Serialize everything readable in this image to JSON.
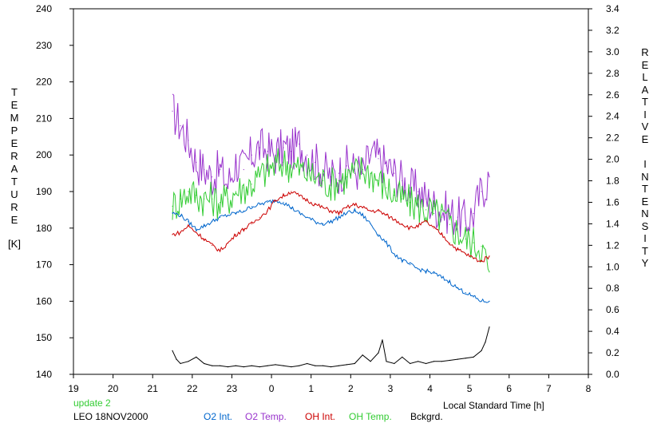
{
  "chart_data": {
    "type": "line",
    "title": "",
    "xlabel": "Local Standard Time [h]",
    "ylabel_left_letters": [
      "T",
      "E",
      "M",
      "P",
      "E",
      "R",
      "A",
      "T",
      "U",
      "R",
      "E"
    ],
    "ylabel_left_unit": "[K]",
    "ylabel_right_words": [
      [
        "R",
        "E",
        "L",
        "A",
        "T",
        "I",
        "V",
        "E"
      ],
      [
        "I",
        "N",
        "T",
        "E",
        "N",
        "S",
        "I",
        "T",
        "Y"
      ]
    ],
    "x_ticks": [
      "19",
      "20",
      "21",
      "22",
      "23",
      "0",
      "1",
      "2",
      "3",
      "4",
      "5",
      "6",
      "7",
      "8"
    ],
    "x_range_hours": [
      19,
      32
    ],
    "y_left_ticks": [
      "240",
      "230",
      "220",
      "210",
      "200",
      "190",
      "180",
      "170",
      "160",
      "150",
      "140"
    ],
    "y_left_range": [
      140,
      240
    ],
    "y_right_ticks": [
      "3.4",
      "3.2",
      "3.0",
      "2.8",
      "2.6",
      "2.4",
      "2.2",
      "2.0",
      "1.8",
      "1.6",
      "1.4",
      "1.2",
      "1.0",
      "0.8",
      "0.6",
      "0.4",
      "0.2",
      "0.0"
    ],
    "y_right_range": [
      0.0,
      3.4
    ],
    "grid": false,
    "series": [
      {
        "name": "O2 Temp.",
        "color": "#9933cc",
        "axis": "left",
        "x": [
          21.5,
          21.7,
          21.9,
          22.1,
          22.3,
          22.5,
          22.7,
          22.9,
          23.1,
          23.3,
          23.5,
          23.7,
          23.9,
          24.1,
          24.3,
          24.5,
          24.7,
          24.9,
          25.1,
          25.3,
          25.5,
          25.7,
          25.9,
          26.1,
          26.3,
          26.5,
          26.7,
          26.9,
          27.1,
          27.3,
          27.5,
          27.7,
          27.9,
          28.1,
          28.3,
          28.5,
          28.7,
          28.9,
          29.1,
          29.3,
          29.5
        ],
        "y": [
          212,
          208,
          204,
          198,
          196,
          194,
          196,
          192,
          198,
          196,
          200,
          202,
          201,
          200,
          202,
          201,
          203,
          200,
          198,
          196,
          194,
          195,
          197,
          196,
          195,
          200,
          199,
          197,
          195,
          193,
          191,
          190,
          188,
          186,
          185,
          184,
          183,
          182,
          184,
          190,
          194
        ]
      },
      {
        "name": "OH Temp.",
        "color": "#33cc33",
        "axis": "left",
        "x": [
          21.5,
          21.7,
          21.9,
          22.1,
          22.3,
          22.5,
          22.7,
          22.9,
          23.1,
          23.3,
          23.5,
          23.7,
          23.9,
          24.1,
          24.3,
          24.5,
          24.7,
          24.9,
          25.1,
          25.3,
          25.5,
          25.7,
          25.9,
          26.1,
          26.3,
          26.5,
          26.7,
          26.9,
          27.1,
          27.3,
          27.5,
          27.7,
          27.9,
          28.1,
          28.3,
          28.5,
          28.7,
          28.9,
          29.1,
          29.3,
          29.5
        ],
        "y": [
          186,
          188,
          190,
          189,
          188,
          188,
          187,
          188,
          190,
          191,
          192,
          194,
          196,
          197,
          198,
          197,
          196,
          195,
          194,
          193,
          192,
          193,
          194,
          195,
          196,
          195,
          193,
          191,
          189,
          188,
          187,
          186,
          185,
          184,
          183,
          181,
          179,
          177,
          176,
          175,
          168
        ]
      },
      {
        "name": "O2 Int.",
        "color": "#0066cc",
        "axis": "right",
        "x": [
          21.5,
          21.7,
          21.9,
          22.1,
          22.3,
          22.5,
          22.7,
          22.9,
          23.1,
          23.3,
          23.5,
          23.7,
          23.9,
          24.1,
          24.3,
          24.5,
          24.7,
          24.9,
          25.1,
          25.3,
          25.5,
          25.7,
          25.9,
          26.1,
          26.3,
          26.5,
          26.7,
          26.9,
          27.1,
          27.3,
          27.5,
          27.7,
          27.9,
          28.1,
          28.3,
          28.5,
          28.7,
          28.9,
          29.1,
          29.3,
          29.5
        ],
        "y": [
          1.5,
          1.48,
          1.42,
          1.35,
          1.38,
          1.42,
          1.46,
          1.48,
          1.5,
          1.52,
          1.56,
          1.58,
          1.6,
          1.62,
          1.6,
          1.55,
          1.5,
          1.46,
          1.42,
          1.4,
          1.42,
          1.46,
          1.5,
          1.52,
          1.48,
          1.4,
          1.3,
          1.22,
          1.12,
          1.06,
          1.02,
          0.98,
          0.96,
          0.94,
          0.9,
          0.86,
          0.8,
          0.76,
          0.72,
          0.68,
          0.68
        ]
      },
      {
        "name": "OH Int.",
        "color": "#cc0000",
        "axis": "right",
        "x": [
          21.5,
          21.7,
          21.9,
          22.1,
          22.3,
          22.5,
          22.7,
          22.9,
          23.1,
          23.3,
          23.5,
          23.7,
          23.9,
          24.1,
          24.3,
          24.5,
          24.7,
          24.9,
          25.1,
          25.3,
          25.5,
          25.7,
          25.9,
          26.1,
          26.3,
          26.5,
          26.7,
          26.9,
          27.1,
          27.3,
          27.5,
          27.7,
          27.9,
          28.1,
          28.3,
          28.5,
          28.7,
          28.9,
          29.1,
          29.3,
          29.5
        ],
        "y": [
          1.3,
          1.32,
          1.38,
          1.32,
          1.26,
          1.2,
          1.15,
          1.22,
          1.3,
          1.35,
          1.4,
          1.46,
          1.52,
          1.62,
          1.66,
          1.7,
          1.66,
          1.62,
          1.58,
          1.55,
          1.52,
          1.5,
          1.55,
          1.58,
          1.55,
          1.52,
          1.52,
          1.48,
          1.44,
          1.4,
          1.36,
          1.38,
          1.42,
          1.36,
          1.3,
          1.22,
          1.16,
          1.12,
          1.08,
          1.05,
          1.1
        ]
      },
      {
        "name": "Bckgrd.",
        "color": "#000000",
        "axis": "right",
        "x": [
          21.5,
          21.6,
          21.7,
          21.9,
          22.1,
          22.3,
          22.5,
          22.7,
          22.9,
          23.1,
          23.3,
          23.5,
          23.7,
          23.9,
          24.1,
          24.3,
          24.5,
          24.7,
          24.9,
          25.1,
          25.3,
          25.5,
          25.7,
          25.9,
          26.1,
          26.3,
          26.5,
          26.7,
          26.8,
          26.9,
          27.1,
          27.3,
          27.5,
          27.7,
          27.9,
          28.1,
          28.3,
          28.5,
          28.7,
          28.9,
          29.1,
          29.3,
          29.4,
          29.5
        ],
        "y": [
          0.22,
          0.14,
          0.1,
          0.12,
          0.16,
          0.1,
          0.08,
          0.08,
          0.07,
          0.08,
          0.07,
          0.08,
          0.07,
          0.08,
          0.09,
          0.08,
          0.07,
          0.08,
          0.1,
          0.08,
          0.08,
          0.07,
          0.08,
          0.09,
          0.1,
          0.18,
          0.12,
          0.2,
          0.32,
          0.12,
          0.1,
          0.16,
          0.1,
          0.12,
          0.1,
          0.12,
          0.12,
          0.13,
          0.14,
          0.15,
          0.16,
          0.22,
          0.3,
          0.44
        ]
      }
    ]
  },
  "footer": {
    "update": "update 2",
    "site": "LEO 18NOV2000"
  },
  "legend": [
    {
      "label": "O2 Int.",
      "color": "#0066cc"
    },
    {
      "label": "O2 Temp.",
      "color": "#9933cc"
    },
    {
      "label": "OH Int.",
      "color": "#cc0000"
    },
    {
      "label": "OH Temp.",
      "color": "#33cc33"
    },
    {
      "label": "Bckgrd.",
      "color": "#000000"
    }
  ],
  "colors": {
    "update_text": "#33cc33",
    "axis": "#000000"
  }
}
